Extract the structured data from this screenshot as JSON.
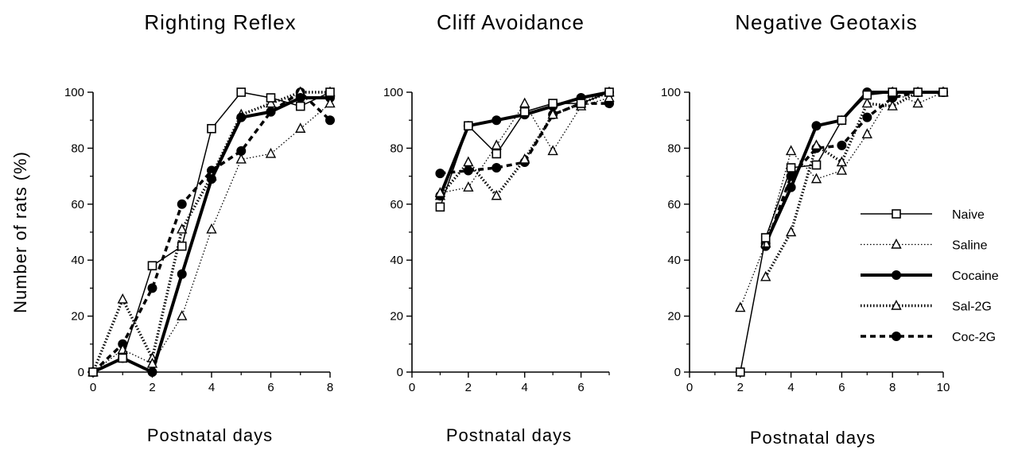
{
  "figure": {
    "ylabel": "Number of rats (%)",
    "legend": {
      "placement": "right of third panel",
      "entries": [
        {
          "name": "Naive",
          "style": "thin-solid",
          "marker": "open-square"
        },
        {
          "name": "Saline",
          "style": "fine-dotted",
          "marker": "open-triangle"
        },
        {
          "name": "Cocaine",
          "style": "thick-solid",
          "marker": "filled-circle"
        },
        {
          "name": "Sal-2G",
          "style": "thick-dotted",
          "marker": "open-triangle"
        },
        {
          "name": "Coc-2G",
          "style": "thick-dashed",
          "marker": "filled-circle"
        }
      ]
    }
  },
  "chart_data": [
    {
      "type": "line",
      "title": "Righting Reflex",
      "xlabel": "Postnatal days",
      "ylabel": "Number of rats (%)",
      "xlim": [
        0,
        8
      ],
      "ylim": [
        0,
        100
      ],
      "xticks": [
        0,
        2,
        4,
        6,
        8
      ],
      "xtick_labels": [
        "0",
        "2",
        "4",
        "6",
        "8"
      ],
      "yticks": [
        0,
        20,
        40,
        60,
        80,
        100
      ],
      "ytick_labels": [
        "0",
        "20",
        "40",
        "60",
        "80",
        "100"
      ],
      "grid": false,
      "series": [
        {
          "name": "Naive",
          "x": [
            0,
            1,
            2,
            3,
            4,
            5,
            6,
            7,
            8
          ],
          "y": [
            0,
            5,
            38,
            45,
            87,
            100,
            98,
            95,
            100
          ]
        },
        {
          "name": "Saline",
          "x": [
            0,
            1,
            2,
            3,
            4,
            5,
            6,
            7,
            8
          ],
          "y": [
            0,
            8,
            3,
            20,
            51,
            76,
            78,
            87,
            96
          ]
        },
        {
          "name": "Cocaine",
          "x": [
            0,
            1,
            2,
            3,
            4,
            5,
            6,
            7,
            8
          ],
          "y": [
            0,
            5,
            0,
            35,
            69,
            91,
            93,
            98,
            98
          ]
        },
        {
          "name": "Sal-2G",
          "x": [
            0,
            1,
            2,
            3,
            4,
            5,
            6,
            7,
            8
          ],
          "y": [
            0,
            26,
            5,
            51,
            70,
            92,
            96,
            100,
            100
          ]
        },
        {
          "name": "Coc-2G",
          "x": [
            0,
            1,
            2,
            3,
            4,
            5,
            6,
            7,
            8
          ],
          "y": [
            0,
            10,
            30,
            60,
            72,
            79,
            93,
            100,
            90
          ]
        }
      ]
    },
    {
      "type": "line",
      "title": "Cliff Avoidance",
      "xlabel": "Postnatal days",
      "ylabel": "",
      "xlim": [
        0,
        7
      ],
      "ylim": [
        0,
        100
      ],
      "xticks": [
        0,
        2,
        4,
        6
      ],
      "xtick_labels": [
        "0",
        "2",
        "4",
        "6"
      ],
      "yticks": [
        0,
        20,
        40,
        60,
        80,
        100
      ],
      "ytick_labels": [
        "0",
        "20",
        "40",
        "60",
        "80",
        "100"
      ],
      "grid": false,
      "series": [
        {
          "name": "Naive",
          "x": [
            1,
            2,
            3,
            4,
            5,
            6,
            7
          ],
          "y": [
            59,
            88,
            78,
            93,
            96,
            96,
            100
          ]
        },
        {
          "name": "Saline",
          "x": [
            1,
            2,
            3,
            4,
            5,
            6,
            7
          ],
          "y": [
            64,
            66,
            81,
            96,
            79,
            95,
            98
          ]
        },
        {
          "name": "Cocaine",
          "x": [
            1,
            2,
            3,
            4,
            5,
            6,
            7
          ],
          "y": [
            63,
            88,
            90,
            92,
            95,
            98,
            100
          ]
        },
        {
          "name": "Sal-2G",
          "x": [
            1,
            2,
            3,
            4,
            5,
            6,
            7
          ],
          "y": [
            63,
            75,
            63,
            76,
            92,
            96,
            100
          ]
        },
        {
          "name": "Coc-2G",
          "x": [
            1,
            2,
            3,
            4,
            5,
            6,
            7
          ],
          "y": [
            71,
            72,
            73,
            75,
            92,
            96,
            96
          ]
        }
      ]
    },
    {
      "type": "line",
      "title": "Negative Geotaxis",
      "xlabel": "Postnatal days",
      "ylabel": "",
      "xlim": [
        0,
        10
      ],
      "ylim": [
        0,
        100
      ],
      "xticks": [
        0,
        2,
        4,
        6,
        8,
        10
      ],
      "xtick_labels": [
        "0",
        "2",
        "4",
        "6",
        "8",
        "10"
      ],
      "yticks": [
        0,
        20,
        40,
        60,
        80,
        100
      ],
      "ytick_labels": [
        "0",
        "20",
        "40",
        "60",
        "80",
        "100"
      ],
      "grid": false,
      "series": [
        {
          "name": "Naive",
          "x": [
            2,
            3,
            4,
            5,
            6,
            7,
            8,
            9,
            10
          ],
          "y": [
            0,
            48,
            73,
            74,
            90,
            99,
            100,
            100,
            100
          ]
        },
        {
          "name": "Saline",
          "x": [
            2,
            3,
            4,
            5,
            6,
            7,
            8,
            9,
            10
          ],
          "y": [
            23,
            46,
            79,
            69,
            72,
            85,
            100,
            96,
            100
          ]
        },
        {
          "name": "Cocaine",
          "x": [
            3,
            4,
            5,
            6,
            7,
            8,
            9,
            10
          ],
          "y": [
            46,
            66,
            88,
            90,
            100,
            100,
            100,
            100
          ]
        },
        {
          "name": "Sal-2G",
          "x": [
            3,
            4,
            5,
            6,
            7,
            8,
            9,
            10
          ],
          "y": [
            34,
            50,
            81,
            75,
            96,
            95,
            100,
            100
          ]
        },
        {
          "name": "Coc-2G",
          "x": [
            3,
            4,
            5,
            6,
            7,
            8,
            9,
            10
          ],
          "y": [
            45,
            70,
            80,
            81,
            91,
            98,
            100,
            100
          ]
        }
      ]
    }
  ]
}
